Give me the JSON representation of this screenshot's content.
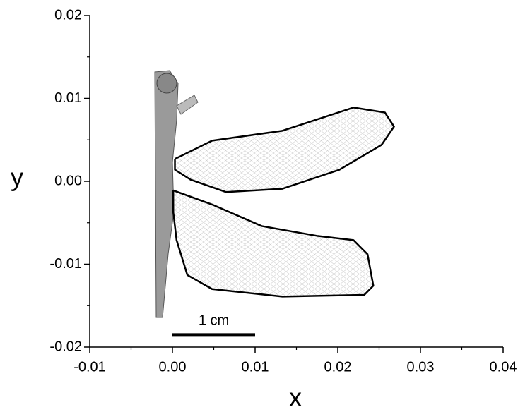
{
  "chart_data": {
    "type": "line",
    "x_label": "x",
    "y_label": "y",
    "xlim": [
      -0.01,
      0.04
    ],
    "ylim": [
      -0.02,
      0.02
    ],
    "xticks": [
      -0.01,
      {
        "value": 0,
        "label": "0.00"
      },
      0.01,
      0.02,
      0.03,
      0.04
    ],
    "yticks": [
      -0.02,
      -0.01,
      {
        "value": 0,
        "label": "0.00"
      },
      0.01,
      0.02
    ],
    "xminor": [
      -0.005,
      0.005,
      0.015,
      0.025,
      0.035
    ],
    "yminor": [
      -0.015,
      -0.005,
      0.005,
      0.015
    ],
    "series": [
      {
        "color": "#000000",
        "x": [
          0.0003,
          0.0048,
          0.0133,
          0.0219,
          0.0257,
          0.0268,
          0.0253,
          0.0202,
          0.0133,
          0.0065,
          0.0022,
          0.0003,
          0.0003
        ],
        "y": [
          0.0027,
          0.0049,
          0.0061,
          0.0089,
          0.0083,
          0.0066,
          0.0044,
          0.0014,
          -0.0009,
          -0.0013,
          0.0002,
          0.0014,
          0.0027
        ]
      },
      {
        "color": "#000000",
        "x": [
          0.0001,
          0.0048,
          0.0108,
          0.0176,
          0.0219,
          0.0236,
          0.0243,
          0.0232,
          0.0133,
          0.0048,
          0.0018,
          0.0005,
          0.0001,
          0.0001
        ],
        "y": [
          -0.0011,
          -0.0028,
          -0.0054,
          -0.0066,
          -0.0071,
          -0.0088,
          -0.0126,
          -0.0137,
          -0.0139,
          -0.013,
          -0.0113,
          -0.0071,
          -0.0037,
          -0.0011
        ]
      }
    ],
    "scale_bar": {
      "label": "1 cm",
      "x": [
        0,
        0.01
      ],
      "y": -0.0185
    }
  }
}
